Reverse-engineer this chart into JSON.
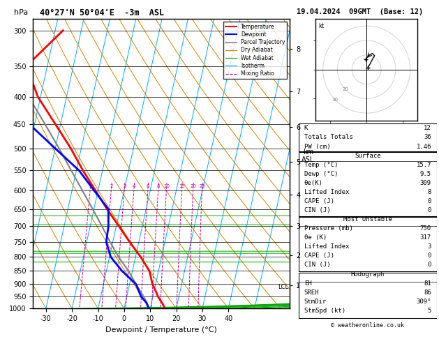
{
  "title_left": "40°27'N 50°04'E  -3m  ASL",
  "title_right": "19.04.2024  09GMT  (Base: 12)",
  "xlabel": "Dewpoint / Temperature (°C)",
  "pressure_levels": [
    300,
    350,
    400,
    450,
    500,
    550,
    600,
    650,
    700,
    750,
    800,
    850,
    900,
    950,
    1000
  ],
  "km_ticks": [
    1,
    2,
    3,
    4,
    5,
    6,
    7,
    8
  ],
  "km_pressures": [
    905,
    795,
    700,
    610,
    530,
    455,
    390,
    325
  ],
  "lcl_pressure": 910,
  "skew_factor": 45.0,
  "temperature_profile": {
    "pressure": [
      1000,
      975,
      950,
      925,
      900,
      850,
      800,
      750,
      700,
      650,
      600,
      550,
      500,
      450,
      400,
      350,
      300
    ],
    "temp": [
      15.7,
      14.0,
      12.0,
      10.5,
      8.8,
      6.5,
      2.0,
      -3.5,
      -9.0,
      -15.0,
      -21.0,
      -27.5,
      -34.0,
      -42.0,
      -51.0,
      -58.0,
      -47.0
    ],
    "color": "#ff0000",
    "linewidth": 2.0
  },
  "dewpoint_profile": {
    "pressure": [
      1000,
      975,
      950,
      925,
      900,
      850,
      800,
      750,
      700,
      650,
      600,
      550,
      500,
      450,
      400,
      350,
      300
    ],
    "temp": [
      9.5,
      8.0,
      5.5,
      4.0,
      2.5,
      -4.0,
      -9.5,
      -12.5,
      -13.0,
      -14.5,
      -21.5,
      -29.0,
      -40.0,
      -52.0,
      -62.0,
      -71.0,
      -80.0
    ],
    "color": "#0000ff",
    "linewidth": 2.0
  },
  "parcel_profile": {
    "pressure": [
      1000,
      975,
      950,
      925,
      900,
      850,
      800,
      750,
      700,
      650,
      600,
      550,
      500,
      450,
      400,
      350,
      300
    ],
    "temp": [
      9.5,
      8.2,
      6.5,
      4.5,
      2.5,
      -1.5,
      -6.5,
      -11.0,
      -15.5,
      -20.5,
      -26.0,
      -32.0,
      -38.5,
      -46.0,
      -54.5,
      -63.0,
      -68.0
    ],
    "color": "#808080",
    "linewidth": 1.5
  },
  "mixing_ratio_values": [
    1,
    2,
    3,
    4,
    6,
    8,
    10,
    15,
    20,
    25
  ],
  "legend_entries": [
    {
      "label": "Temperature",
      "color": "#ff0000",
      "lw": 1.5,
      "ls": "-"
    },
    {
      "label": "Dewpoint",
      "color": "#0000ff",
      "lw": 1.5,
      "ls": "-"
    },
    {
      "label": "Parcel Trajectory",
      "color": "#808080",
      "lw": 1.2,
      "ls": "-"
    },
    {
      "label": "Dry Adiabat",
      "color": "#cc8800",
      "lw": 0.8,
      "ls": "-"
    },
    {
      "label": "Wet Adiabat",
      "color": "#00aa00",
      "lw": 0.8,
      "ls": "-"
    },
    {
      "label": "Isotherm",
      "color": "#00aaff",
      "lw": 0.8,
      "ls": "-"
    },
    {
      "label": "Mixing Ratio",
      "color": "#cc00aa",
      "lw": 0.8,
      "ls": "--"
    }
  ],
  "table1": [
    [
      "K",
      "12"
    ],
    [
      "Totals Totals",
      "36"
    ],
    [
      "PW (cm)",
      "1.46"
    ]
  ],
  "table_surface_header": "Surface",
  "table_surface": [
    [
      "Temp (°C)",
      "15.7"
    ],
    [
      "Dewp (°C)",
      "9.5"
    ],
    [
      "θe(K)",
      "309"
    ],
    [
      "Lifted Index",
      "8"
    ],
    [
      "CAPE (J)",
      "0"
    ],
    [
      "CIN (J)",
      "0"
    ]
  ],
  "table_unstable_header": "Most Unstable",
  "table_unstable": [
    [
      "Pressure (mb)",
      "750"
    ],
    [
      "θe (K)",
      "317"
    ],
    [
      "Lifted Index",
      "3"
    ],
    [
      "CAPE (J)",
      "0"
    ],
    [
      "CIN (J)",
      "0"
    ]
  ],
  "table_hodo_header": "Hodograph",
  "table_hodo": [
    [
      "EH",
      "81"
    ],
    [
      "SREH",
      "86"
    ],
    [
      "StmDir",
      "309°"
    ],
    [
      "StmSpd (kt)",
      "5"
    ]
  ],
  "credit": "© weatheronline.co.uk",
  "isotherm_color": "#00aaff",
  "dry_adiabat_color": "#cc8800",
  "wet_adiabat_color": "#00aa00",
  "mix_ratio_color": "#cc00aa",
  "hodo_rings": [
    10,
    20,
    30
  ],
  "hodo_u": [
    1.0,
    2.5,
    4.0,
    5.5,
    4.0,
    2.0,
    0.5,
    -0.5
  ],
  "hodo_v": [
    1.5,
    4.0,
    7.0,
    9.5,
    11.0,
    10.0,
    8.5,
    7.0
  ]
}
